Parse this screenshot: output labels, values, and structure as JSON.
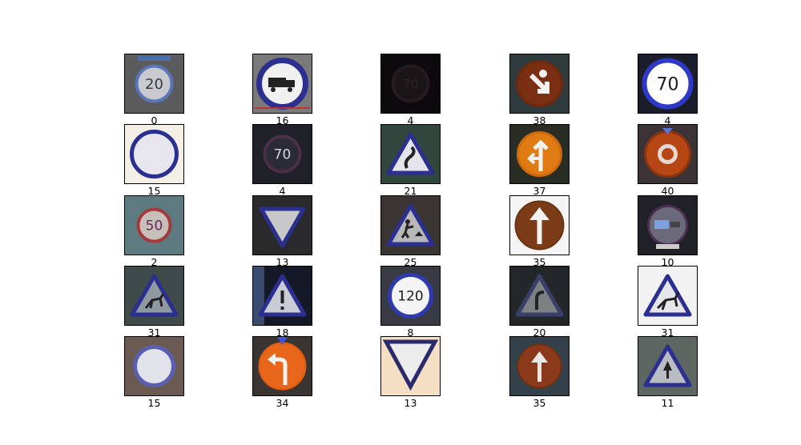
{
  "figure": {
    "samples": [
      {
        "label": "0",
        "sign": "speed-limit-20-sign",
        "bg": "#5b5b5b"
      },
      {
        "label": "16",
        "sign": "no-trucks-sign",
        "bg": "#7a7a7a"
      },
      {
        "label": "4",
        "sign": "speed-limit-70-sign-dark",
        "bg": "#0c0a0c"
      },
      {
        "label": "38",
        "sign": "keep-right-sign",
        "bg": "#2f3b3c"
      },
      {
        "label": "4",
        "sign": "speed-limit-70-sign",
        "bg": "#1b1d2a"
      },
      {
        "label": "15",
        "sign": "no-vehicles-sign",
        "bg": "#f4efe6"
      },
      {
        "label": "4",
        "sign": "speed-limit-70-sign-dim",
        "bg": "#1f2028"
      },
      {
        "label": "21",
        "sign": "double-curve-sign",
        "bg": "#31463d"
      },
      {
        "label": "37",
        "sign": "go-straight-or-left-sign",
        "bg": "#2a2d24"
      },
      {
        "label": "40",
        "sign": "roundabout-sign",
        "bg": "#3b3335"
      },
      {
        "label": "2",
        "sign": "speed-limit-50-sign",
        "bg": "#5d7a80"
      },
      {
        "label": "13",
        "sign": "yield-sign",
        "bg": "#2a2a2c"
      },
      {
        "label": "25",
        "sign": "road-work-sign",
        "bg": "#3a3432"
      },
      {
        "label": "35",
        "sign": "ahead-only-sign",
        "bg": "#f5f5f5"
      },
      {
        "label": "10",
        "sign": "no-passing-trucks-sign",
        "bg": "#1f2126"
      },
      {
        "label": "31",
        "sign": "wild-animals-crossing-sign",
        "bg": "#3f4a4a"
      },
      {
        "label": "18",
        "sign": "general-caution-sign",
        "bg": "#151826"
      },
      {
        "label": "8",
        "sign": "speed-limit-120-sign",
        "bg": "#383a44"
      },
      {
        "label": "20",
        "sign": "dangerous-curve-right-sign",
        "bg": "#24272a"
      },
      {
        "label": "31",
        "sign": "wild-animals-crossing-sign-2",
        "bg": "#f2f2f2"
      },
      {
        "label": "15",
        "sign": "no-vehicles-sign-2",
        "bg": "#6b5a52"
      },
      {
        "label": "34",
        "sign": "turn-left-ahead-sign",
        "bg": "#3a3532"
      },
      {
        "label": "13",
        "sign": "yield-sign-2",
        "bg": "#f4dfc2"
      },
      {
        "label": "35",
        "sign": "ahead-only-sign-2",
        "bg": "#33424a"
      },
      {
        "label": "11",
        "sign": "right-of-way-sign",
        "bg": "#5d6660"
      }
    ]
  }
}
